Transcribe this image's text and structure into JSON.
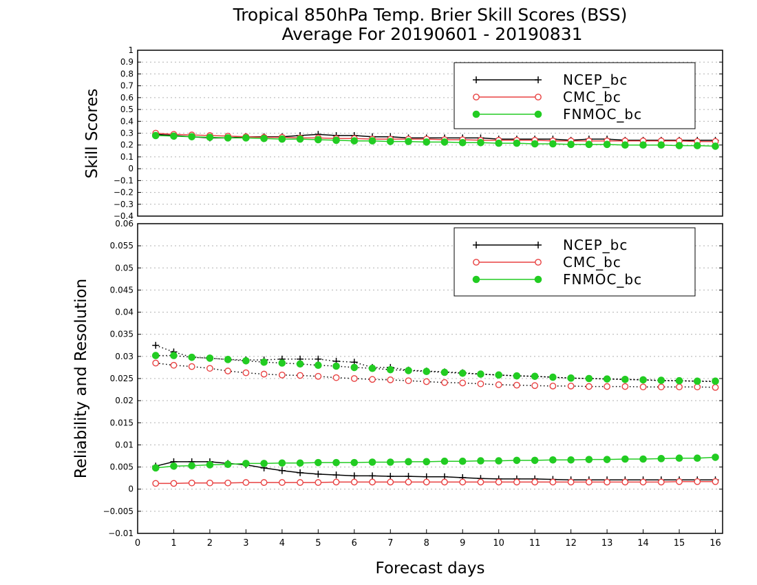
{
  "title_line1": "Tropical 850hPa Temp. Brier Skill Scores (BSS)",
  "title_line2": "Average For 20190601 - 20190831",
  "xlabel": "Forecast days",
  "colors": {
    "NCEP_bc": "#000000",
    "CMC_bc": "#e84040",
    "FNMOC_bc": "#22cc22"
  },
  "chart_data": [
    {
      "type": "line",
      "ylabel": "Skill Scores",
      "xlim": [
        0,
        16.2
      ],
      "ylim": [
        -0.4,
        1
      ],
      "y_ticks": [
        "1",
        "0.9",
        "0.8",
        "0.7",
        "0.6",
        "0.5",
        "0.4",
        "0.3",
        "0.2",
        "0.1",
        "0",
        "−0.1",
        "−0.2",
        "−0.3",
        "−0.4"
      ],
      "grid": true,
      "legend": "top-right",
      "x": [
        0.5,
        1,
        1.5,
        2,
        2.5,
        3,
        3.5,
        4,
        4.5,
        5,
        5.5,
        6,
        6.5,
        7,
        7.5,
        8,
        8.5,
        9,
        9.5,
        10,
        10.5,
        11,
        11.5,
        12,
        12.5,
        13,
        13.5,
        14,
        14.5,
        15,
        15.5,
        16
      ],
      "series": [
        {
          "name": "NCEP_bc",
          "marker": "plus",
          "values": [
            0.29,
            0.28,
            0.27,
            0.26,
            0.26,
            0.27,
            0.27,
            0.27,
            0.28,
            0.29,
            0.28,
            0.28,
            0.27,
            0.27,
            0.26,
            0.26,
            0.26,
            0.26,
            0.26,
            0.25,
            0.25,
            0.25,
            0.25,
            0.24,
            0.25,
            0.25,
            0.24,
            0.24,
            0.24,
            0.24,
            0.24,
            0.24
          ]
        },
        {
          "name": "CMC_bc",
          "marker": "open-circle",
          "values": [
            0.3,
            0.29,
            0.285,
            0.28,
            0.275,
            0.27,
            0.265,
            0.265,
            0.26,
            0.26,
            0.255,
            0.255,
            0.25,
            0.25,
            0.25,
            0.25,
            0.245,
            0.245,
            0.24,
            0.24,
            0.24,
            0.24,
            0.235,
            0.235,
            0.235,
            0.235,
            0.235,
            0.235,
            0.235,
            0.235,
            0.23,
            0.23
          ]
        },
        {
          "name": "FNMOC_bc",
          "marker": "filled-circle",
          "values": [
            0.28,
            0.275,
            0.27,
            0.265,
            0.26,
            0.26,
            0.255,
            0.25,
            0.25,
            0.245,
            0.24,
            0.235,
            0.235,
            0.23,
            0.23,
            0.225,
            0.225,
            0.22,
            0.22,
            0.215,
            0.215,
            0.21,
            0.21,
            0.205,
            0.205,
            0.205,
            0.2,
            0.2,
            0.2,
            0.195,
            0.195,
            0.19
          ]
        }
      ]
    },
    {
      "type": "line",
      "ylabel": "Reliability and Resolution",
      "xlim": [
        0,
        16.2
      ],
      "ylim": [
        -0.01,
        0.06
      ],
      "y_ticks": [
        "0.06",
        "0.055",
        "0.05",
        "0.045",
        "0.04",
        "0.035",
        "0.03",
        "0.025",
        "0.02",
        "0.015",
        "0.01",
        "0.005",
        "0",
        "−0.005",
        "−0.01"
      ],
      "x_ticks": [
        "0",
        "1",
        "2",
        "3",
        "4",
        "5",
        "6",
        "7",
        "8",
        "9",
        "10",
        "11",
        "12",
        "13",
        "14",
        "15",
        "16"
      ],
      "grid": true,
      "legend": "top-right",
      "x": [
        0.5,
        1,
        1.5,
        2,
        2.5,
        3,
        3.5,
        4,
        4.5,
        5,
        5.5,
        6,
        6.5,
        7,
        7.5,
        8,
        8.5,
        9,
        9.5,
        10,
        10.5,
        11,
        11.5,
        12,
        12.5,
        13,
        13.5,
        14,
        14.5,
        15,
        15.5,
        16
      ],
      "series": [
        {
          "name": "NCEP_bc",
          "component": "resolution",
          "style": "dotted",
          "marker": "plus",
          "values": [
            0.0325,
            0.031,
            0.0298,
            0.0296,
            0.0293,
            0.0292,
            0.0292,
            0.0294,
            0.0294,
            0.0294,
            0.0289,
            0.0287,
            0.0275,
            0.0275,
            0.0269,
            0.0267,
            0.0265,
            0.0263,
            0.026,
            0.0258,
            0.0256,
            0.0255,
            0.0253,
            0.0251,
            0.025,
            0.0249,
            0.0248,
            0.0247,
            0.0245,
            0.0245,
            0.0244,
            0.0243
          ]
        },
        {
          "name": "CMC_bc",
          "component": "resolution",
          "style": "dotted",
          "marker": "open-circle",
          "values": [
            0.0285,
            0.028,
            0.0277,
            0.0273,
            0.0267,
            0.0263,
            0.026,
            0.0258,
            0.0257,
            0.0255,
            0.0252,
            0.025,
            0.0248,
            0.0247,
            0.0245,
            0.0243,
            0.0241,
            0.024,
            0.0238,
            0.0236,
            0.0235,
            0.0234,
            0.0233,
            0.0233,
            0.0232,
            0.0232,
            0.0232,
            0.0231,
            0.0231,
            0.0231,
            0.0231,
            0.023
          ]
        },
        {
          "name": "FNMOC_bc",
          "component": "resolution",
          "style": "dotted",
          "marker": "filled-circle",
          "values": [
            0.0302,
            0.0302,
            0.0298,
            0.0296,
            0.0293,
            0.029,
            0.0287,
            0.0285,
            0.0283,
            0.028,
            0.0278,
            0.0275,
            0.0273,
            0.027,
            0.0268,
            0.0266,
            0.0264,
            0.0262,
            0.026,
            0.0258,
            0.0256,
            0.0255,
            0.0253,
            0.0251,
            0.025,
            0.0249,
            0.0248,
            0.0247,
            0.0246,
            0.0245,
            0.0244,
            0.0244
          ]
        },
        {
          "name": "NCEP_bc",
          "component": "reliability",
          "style": "solid",
          "marker": "plus",
          "values": [
            0.0052,
            0.0062,
            0.0062,
            0.0062,
            0.0058,
            0.0055,
            0.0048,
            0.0042,
            0.0037,
            0.0034,
            0.0032,
            0.003,
            0.003,
            0.0029,
            0.0029,
            0.0028,
            0.0028,
            0.0026,
            0.0024,
            0.0023,
            0.0023,
            0.0023,
            0.0022,
            0.0021,
            0.0021,
            0.0021,
            0.0021,
            0.0021,
            0.0021,
            0.0021,
            0.0021,
            0.0021
          ]
        },
        {
          "name": "CMC_bc",
          "component": "reliability",
          "style": "solid",
          "marker": "open-circle",
          "values": [
            0.0013,
            0.0013,
            0.0014,
            0.0014,
            0.0014,
            0.0015,
            0.0015,
            0.0015,
            0.0015,
            0.0015,
            0.0016,
            0.0016,
            0.0016,
            0.0016,
            0.0016,
            0.0016,
            0.0016,
            0.0016,
            0.0016,
            0.0016,
            0.0016,
            0.0016,
            0.0016,
            0.0016,
            0.0016,
            0.0016,
            0.0016,
            0.0016,
            0.0016,
            0.0017,
            0.0017,
            0.0017
          ]
        },
        {
          "name": "FNMOC_bc",
          "component": "reliability",
          "style": "solid",
          "marker": "filled-circle",
          "values": [
            0.0048,
            0.0052,
            0.0053,
            0.0055,
            0.0056,
            0.0058,
            0.0058,
            0.0059,
            0.0059,
            0.006,
            0.006,
            0.006,
            0.0061,
            0.0061,
            0.0062,
            0.0062,
            0.0063,
            0.0063,
            0.0064,
            0.0064,
            0.0065,
            0.0065,
            0.0066,
            0.0066,
            0.0067,
            0.0067,
            0.0068,
            0.0068,
            0.0069,
            0.007,
            0.007,
            0.0072
          ]
        }
      ]
    }
  ]
}
